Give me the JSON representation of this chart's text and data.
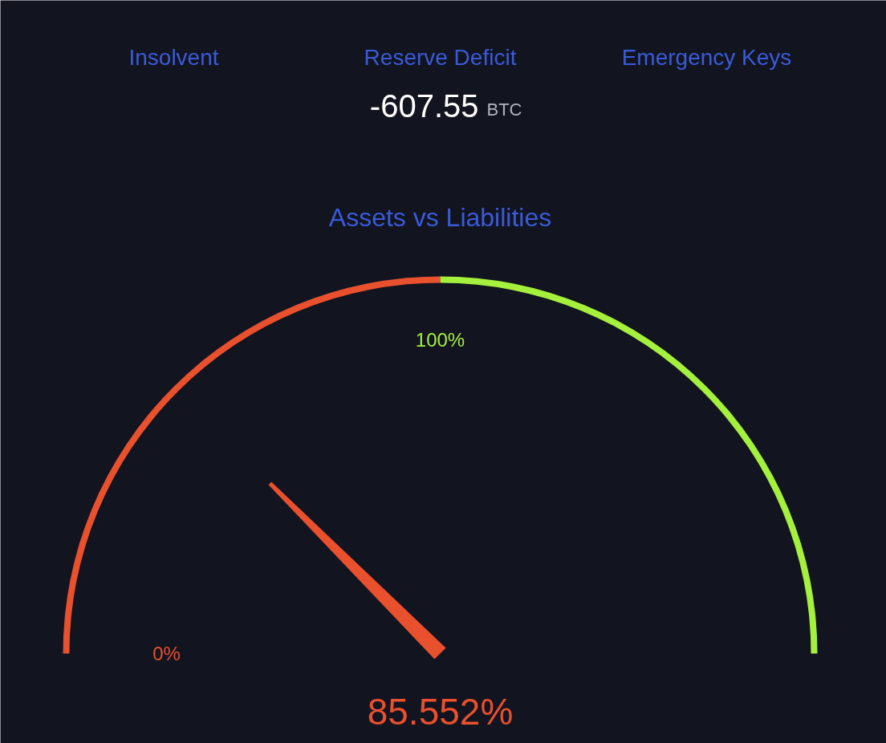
{
  "chart_data": {
    "type": "donut",
    "title": "Assets vs Liabilities",
    "categories": [
      "0%",
      "100%"
    ],
    "values": [
      50,
      50
    ],
    "colors": [
      "#e8502e",
      "#a4f03c"
    ],
    "needle": "0%",
    "annotations": [
      "85.552%",
      "Insolvent",
      "Reserve Deficit",
      "-607.55",
      "BTC",
      "Emergency Keys"
    ]
  }
}
